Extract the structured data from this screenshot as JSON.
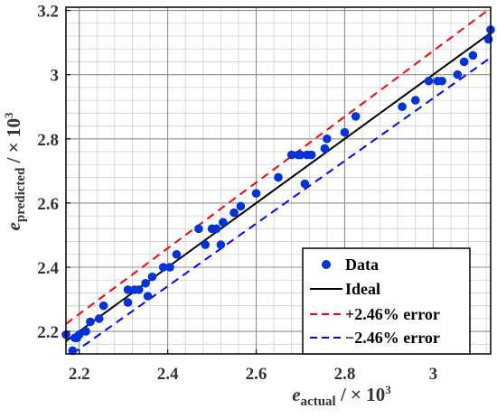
{
  "chart_data": {
    "type": "scatter",
    "title": "",
    "xlabel": {
      "main": "e",
      "sub": "actual",
      "unit": " / × 10",
      "exp": "3"
    },
    "ylabel": {
      "main": "e",
      "sub": "predicted",
      "unit": " / × 10",
      "exp": "3"
    },
    "xlim": [
      2.17,
      3.13
    ],
    "ylim": [
      2.13,
      3.21
    ],
    "xticks": [
      2.2,
      2.4,
      2.6,
      2.8,
      3.0
    ],
    "xtick_labels": [
      "2.2",
      "2.4",
      "2.6",
      "2.8",
      "3"
    ],
    "yticks": [
      2.2,
      2.4,
      2.6,
      2.8,
      3.0,
      3.2
    ],
    "ytick_labels": [
      "2.2",
      "2.4",
      "2.6",
      "2.8",
      "3",
      "3.2"
    ],
    "grid": true,
    "minor_grid_step": 0.04,
    "legend_position": "bottom-right",
    "error_pct": 2.46,
    "colors": {
      "data": "#0033dd",
      "ideal": "#000000",
      "upper": "#ff0000",
      "lower": "#0000ff",
      "grid_major": "#8c8c8c",
      "grid_minor": "#cfcfcf"
    },
    "series": [
      {
        "name": "Data",
        "kind": "scatter",
        "points": [
          [
            2.17,
            2.19
          ],
          [
            2.185,
            2.14
          ],
          [
            2.19,
            2.18
          ],
          [
            2.195,
            2.18
          ],
          [
            2.2,
            2.19
          ],
          [
            2.215,
            2.2
          ],
          [
            2.225,
            2.23
          ],
          [
            2.245,
            2.24
          ],
          [
            2.255,
            2.28
          ],
          [
            2.31,
            2.29
          ],
          [
            2.31,
            2.33
          ],
          [
            2.325,
            2.33
          ],
          [
            2.335,
            2.33
          ],
          [
            2.35,
            2.35
          ],
          [
            2.355,
            2.31
          ],
          [
            2.365,
            2.37
          ],
          [
            2.39,
            2.4
          ],
          [
            2.405,
            2.4
          ],
          [
            2.42,
            2.44
          ],
          [
            2.47,
            2.52
          ],
          [
            2.485,
            2.47
          ],
          [
            2.5,
            2.52
          ],
          [
            2.51,
            2.52
          ],
          [
            2.52,
            2.47
          ],
          [
            2.525,
            2.54
          ],
          [
            2.55,
            2.57
          ],
          [
            2.565,
            2.59
          ],
          [
            2.6,
            2.63
          ],
          [
            2.65,
            2.68
          ],
          [
            2.68,
            2.75
          ],
          [
            2.695,
            2.75
          ],
          [
            2.7,
            2.75
          ],
          [
            2.71,
            2.66
          ],
          [
            2.715,
            2.75
          ],
          [
            2.725,
            2.75
          ],
          [
            2.755,
            2.77
          ],
          [
            2.76,
            2.8
          ],
          [
            2.8,
            2.82
          ],
          [
            2.825,
            2.87
          ],
          [
            2.93,
            2.9
          ],
          [
            2.96,
            2.92
          ],
          [
            2.99,
            2.98
          ],
          [
            3.01,
            2.98
          ],
          [
            3.02,
            2.98
          ],
          [
            3.055,
            3.0
          ],
          [
            3.07,
            3.04
          ],
          [
            3.09,
            3.06
          ],
          [
            3.125,
            3.11
          ],
          [
            3.13,
            3.14
          ]
        ]
      },
      {
        "name": "Ideal",
        "kind": "line",
        "style": "solid",
        "factor": 1.0
      },
      {
        "name": "+2.46% error",
        "kind": "line",
        "style": "dashed",
        "factor": 1.0246
      },
      {
        "name": "−2.46% error",
        "kind": "line",
        "style": "dashed",
        "factor": 0.9754
      }
    ]
  }
}
